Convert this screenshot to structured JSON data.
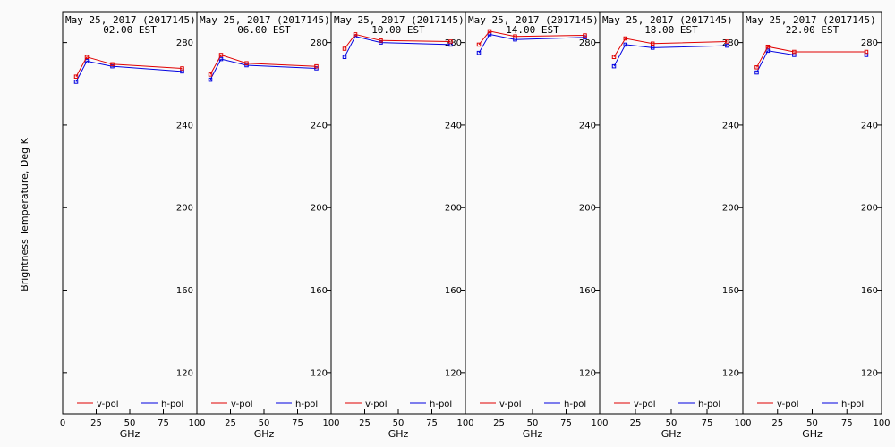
{
  "chart_data": {
    "type": "line",
    "ylabel": "Brightness Temperature, Deg K",
    "ylim": [
      100,
      295
    ],
    "yticks": [
      120,
      160,
      200,
      240,
      280
    ],
    "xlabel": "GHz",
    "xlim": [
      0,
      100
    ],
    "xticks": [
      0,
      25,
      50,
      75,
      100
    ],
    "legend_placement": "bottom",
    "colors": {
      "v-pol": "#e00000",
      "h-pol": "#0000e0"
    },
    "panels": [
      {
        "title": "May 25, 2017 (2017145)",
        "subtitle": "02.00 EST",
        "series": [
          {
            "name": "v-pol",
            "x": [
              10,
              18,
              37,
              89
            ],
            "y": [
              263.5,
              273,
              269.5,
              267.5
            ]
          },
          {
            "name": "h-pol",
            "x": [
              10,
              18,
              37,
              89
            ],
            "y": [
              261,
              271,
              268.5,
              266
            ]
          }
        ]
      },
      {
        "title": "May 25, 2017 (2017145)",
        "subtitle": "06.00 EST",
        "series": [
          {
            "name": "v-pol",
            "x": [
              10,
              18,
              37,
              89
            ],
            "y": [
              264.5,
              274,
              270,
              268.5
            ]
          },
          {
            "name": "h-pol",
            "x": [
              10,
              18,
              37,
              89
            ],
            "y": [
              262,
              272,
              269,
              267.5
            ]
          }
        ]
      },
      {
        "title": "May 25, 2017 (2017145)",
        "subtitle": "10.00 EST",
        "series": [
          {
            "name": "v-pol",
            "x": [
              10,
              18,
              37,
              89
            ],
            "y": [
              277,
              284,
              281,
              280.5
            ]
          },
          {
            "name": "h-pol",
            "x": [
              10,
              18,
              37,
              89
            ],
            "y": [
              273,
              283,
              280,
              279
            ]
          }
        ]
      },
      {
        "title": "May 25, 2017 (2017145)",
        "subtitle": "14.00 EST",
        "series": [
          {
            "name": "v-pol",
            "x": [
              10,
              18,
              37,
              89
            ],
            "y": [
              279,
              285.5,
              283,
              283.5
            ]
          },
          {
            "name": "h-pol",
            "x": [
              10,
              18,
              37,
              89
            ],
            "y": [
              275,
              284,
              281.5,
              282.5
            ]
          }
        ]
      },
      {
        "title": "May 25, 2017 (2017145)",
        "subtitle": "18.00 EST",
        "series": [
          {
            "name": "v-pol",
            "x": [
              10,
              18,
              37,
              89
            ],
            "y": [
              273,
              282,
              279.5,
              280.5
            ]
          },
          {
            "name": "h-pol",
            "x": [
              10,
              18,
              37,
              89
            ],
            "y": [
              268.5,
              279,
              277.5,
              278.5
            ]
          }
        ]
      },
      {
        "title": "May 25, 2017 (2017145)",
        "subtitle": "22.00 EST",
        "series": [
          {
            "name": "v-pol",
            "x": [
              10,
              18,
              37,
              89
            ],
            "y": [
              268,
              278,
              275.5,
              275.5
            ]
          },
          {
            "name": "h-pol",
            "x": [
              10,
              18,
              37,
              89
            ],
            "y": [
              265.5,
              276,
              274,
              274
            ]
          }
        ]
      }
    ]
  }
}
